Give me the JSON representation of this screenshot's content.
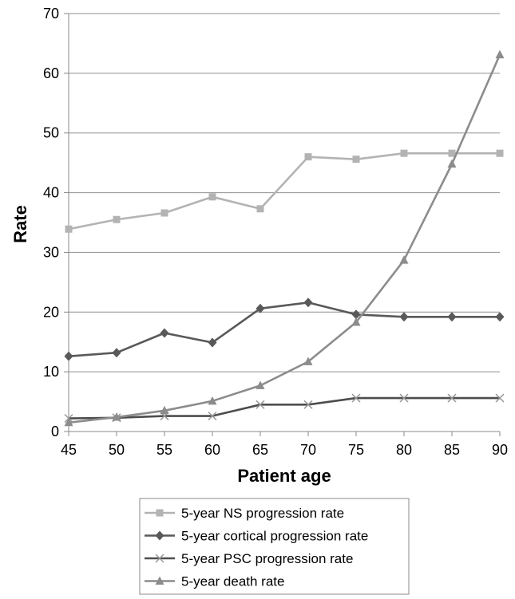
{
  "chart_data": {
    "type": "line",
    "xlabel": "Patient age",
    "ylabel": "Rate",
    "x": [
      45,
      50,
      55,
      60,
      65,
      70,
      75,
      80,
      85,
      90
    ],
    "xlim": [
      45,
      90
    ],
    "ylim": [
      0,
      70
    ],
    "xticks": [
      45,
      50,
      55,
      60,
      65,
      70,
      75,
      80,
      85,
      90
    ],
    "yticks": [
      0,
      10,
      20,
      30,
      40,
      50,
      60,
      70
    ],
    "grid": "horizontal",
    "legend_position": "bottom",
    "series": [
      {
        "name": "5-year NS progression rate",
        "color": "#b3b3b3",
        "marker": "square",
        "values": [
          33.9,
          35.5,
          36.6,
          39.3,
          37.3,
          46.0,
          45.6,
          46.6,
          46.6,
          46.6
        ]
      },
      {
        "name": "5-year cortical progression rate",
        "color": "#595959",
        "marker": "diamond",
        "values": [
          12.6,
          13.2,
          16.5,
          14.9,
          20.6,
          21.6,
          19.6,
          19.2,
          19.2,
          19.2
        ]
      },
      {
        "name": "5-year PSC progression rate",
        "color": "#4d4d4d",
        "marker": "x",
        "values": [
          2.2,
          2.3,
          2.6,
          2.6,
          4.5,
          4.5,
          5.6,
          5.6,
          5.6,
          5.6
        ]
      },
      {
        "name": "5-year death rate",
        "color": "#8c8c8c",
        "marker": "triangle",
        "values": [
          1.5,
          2.4,
          3.5,
          5.1,
          7.7,
          11.7,
          18.3,
          28.7,
          44.8,
          63.1
        ]
      }
    ]
  }
}
